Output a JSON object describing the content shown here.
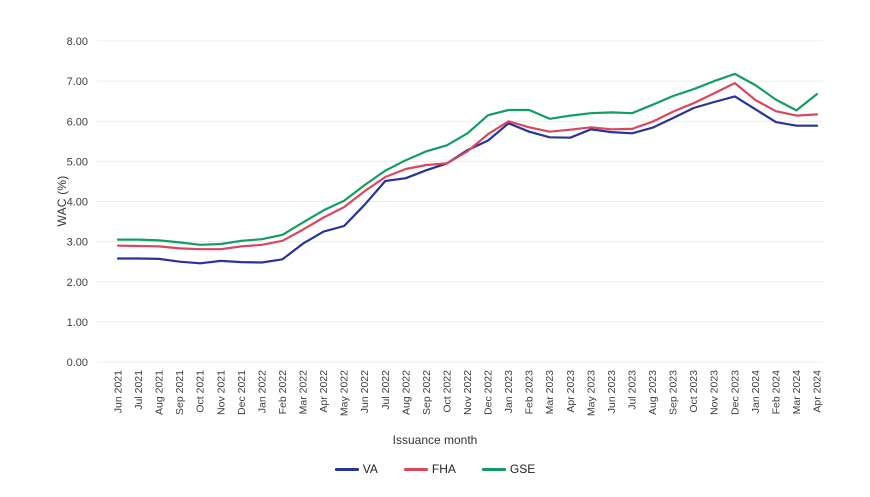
{
  "chart_data": {
    "type": "line",
    "title": "",
    "xlabel": "Issuance month",
    "ylabel": "WAC (%)",
    "ylim": [
      0,
      8
    ],
    "ytick_labels": [
      "0.00",
      "1.00",
      "2.00",
      "3.00",
      "4.00",
      "5.00",
      "6.00",
      "7.00",
      "8.00"
    ],
    "grid": true,
    "legend_position": "bottom",
    "categories": [
      "Jun 2021",
      "Jul 2021",
      "Aug 2021",
      "Sep 2021",
      "Oct 2021",
      "Nov 2021",
      "Dec 2021",
      "Jan 2022",
      "Feb 2022",
      "Mar 2022",
      "Apr 2022",
      "May 2022",
      "Jun 2022",
      "Jul 2022",
      "Aug 2022",
      "Sep 2022",
      "Oct 2022",
      "Nov 2022",
      "Dec 2022",
      "Jan 2023",
      "Feb 2023",
      "Mar 2023",
      "Apr 2023",
      "May 2023",
      "Jun 2023",
      "Jul 2023",
      "Aug 2023",
      "Sep 2023",
      "Oct 2023",
      "Nov 2023",
      "Dec 2023",
      "Jan 2024",
      "Feb 2024",
      "Mar 2024",
      "Apr 2024"
    ],
    "series": [
      {
        "name": "VA",
        "color": "#28339c",
        "values": [
          2.58,
          2.58,
          2.57,
          2.5,
          2.46,
          2.52,
          2.49,
          2.48,
          2.56,
          2.95,
          3.25,
          3.39,
          3.92,
          4.51,
          4.58,
          4.78,
          4.95,
          5.28,
          5.52,
          5.95,
          5.74,
          5.6,
          5.59,
          5.8,
          5.73,
          5.7,
          5.84,
          6.08,
          6.33,
          6.48,
          6.62,
          6.3,
          5.98,
          5.89,
          5.89
        ]
      },
      {
        "name": "FHA",
        "color": "#d8485e",
        "values": [
          2.9,
          2.89,
          2.88,
          2.83,
          2.81,
          2.81,
          2.88,
          2.92,
          3.02,
          3.3,
          3.6,
          3.86,
          4.26,
          4.61,
          4.81,
          4.91,
          4.95,
          5.25,
          5.68,
          6.0,
          5.85,
          5.74,
          5.79,
          5.85,
          5.8,
          5.81,
          5.99,
          6.24,
          6.45,
          6.7,
          6.95,
          6.53,
          6.25,
          6.14,
          6.17
        ]
      },
      {
        "name": "GSE",
        "color": "#129e63",
        "values": [
          3.05,
          3.05,
          3.03,
          2.98,
          2.92,
          2.94,
          3.02,
          3.06,
          3.17,
          3.48,
          3.78,
          4.02,
          4.41,
          4.77,
          5.03,
          5.25,
          5.4,
          5.7,
          6.15,
          6.28,
          6.28,
          6.06,
          6.14,
          6.2,
          6.22,
          6.2,
          6.41,
          6.63,
          6.8,
          7.0,
          7.18,
          6.9,
          6.54,
          6.27,
          6.68
        ]
      }
    ]
  },
  "style": {
    "grid_color": "#ececec",
    "tick_text_color": "#3c4043",
    "axis_title_color": "#333333",
    "background": "#ffffff"
  }
}
